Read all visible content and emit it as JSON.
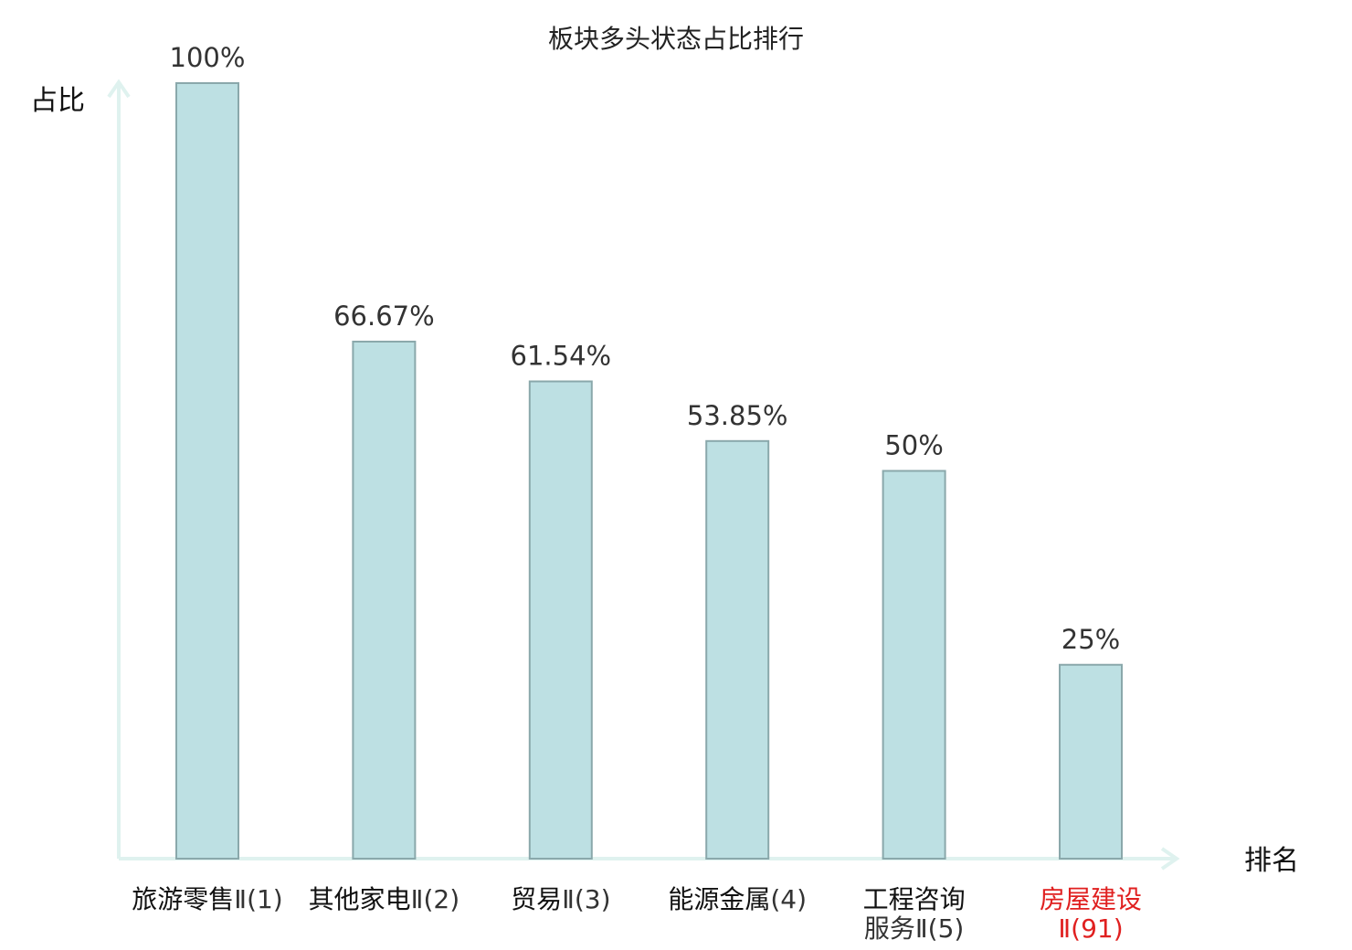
{
  "chart_data": {
    "type": "bar",
    "title": "板块多头状态占比排行",
    "ylabel": "占比",
    "xlabel": "排名",
    "ylim": [
      0,
      100
    ],
    "grid": false,
    "categories": [
      {
        "name": "旅游零售",
        "suffix": "Ⅱ(1)",
        "highlight": false
      },
      {
        "name": "其他家电",
        "suffix": "Ⅱ(2)",
        "highlight": false
      },
      {
        "name": "贸易",
        "suffix": "Ⅱ(3)",
        "highlight": false
      },
      {
        "name": "能源金属",
        "suffix": "(4)",
        "highlight": false
      },
      {
        "name": "工程咨询",
        "suffix": "服务Ⅱ(5)",
        "highlight": false
      },
      {
        "name": "房屋建设",
        "suffix": "Ⅱ(91)",
        "highlight": true
      }
    ],
    "values": [
      100,
      66.67,
      61.54,
      53.85,
      50,
      25
    ],
    "value_labels": [
      "100%",
      "66.67%",
      "61.54%",
      "53.85%",
      "50%",
      "25%"
    ],
    "colors": {
      "bar_fill": "#bde0e3",
      "bar_stroke": "#8aa8ab",
      "axis": "#dff2ef",
      "highlight": "#e02020",
      "normal_text": "#111111",
      "suffix_text": "#333333"
    }
  }
}
